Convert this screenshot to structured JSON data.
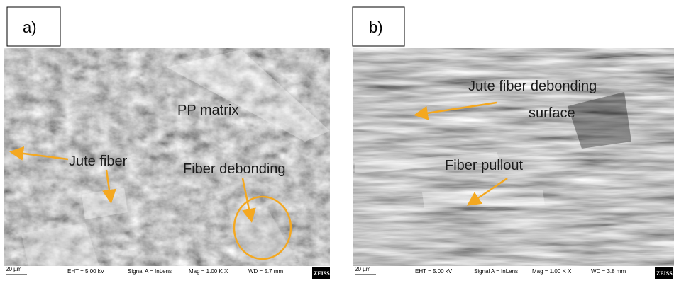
{
  "panels": [
    {
      "label": "a)",
      "annotations": [
        "PP matrix",
        "Jute fiber",
        "Fiber debonding"
      ],
      "scale_bar": "20 µm",
      "info": [
        "EHT = 5.00 kV",
        "Signal A = InLens",
        "Mag =  1.00 K X",
        "WD =  5.7 mm"
      ],
      "logo": "ZEISS"
    },
    {
      "label": "b)",
      "annotations": [
        "Jute fiber debonding",
        "surface",
        "Fiber pullout"
      ],
      "scale_bar": "20 µm",
      "info": [
        "EHT = 5.00 kV",
        "Signal A = InLens",
        "Mag =  1.00 K X",
        "WD =  3.8 mm"
      ],
      "logo": "ZEISS"
    }
  ]
}
